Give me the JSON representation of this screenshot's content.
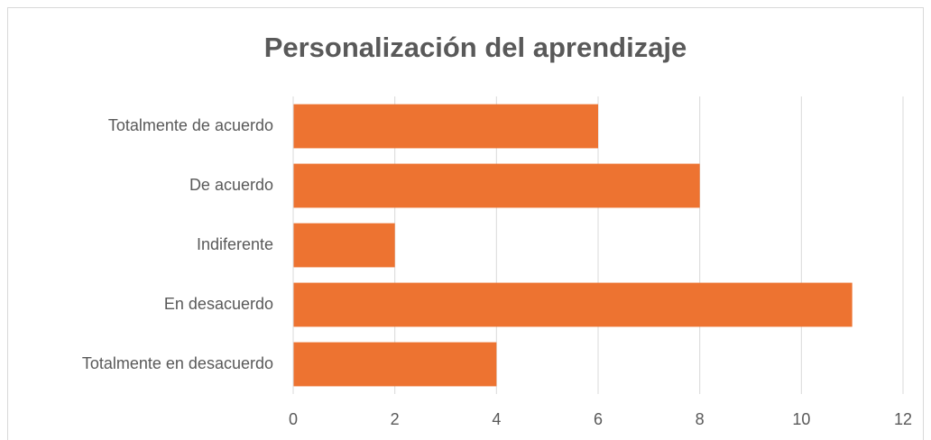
{
  "chart_data": {
    "type": "bar",
    "orientation": "horizontal",
    "title": "Personalización del aprendizaje",
    "categories": [
      "Totalmente de acuerdo",
      "De acuerdo",
      "Indiferente",
      "En desacuerdo",
      "Totalmente en desacuerdo"
    ],
    "values": [
      6,
      8,
      2,
      11,
      4
    ],
    "color": "#ed7331",
    "xlim": [
      0,
      12
    ],
    "xticks": [
      0,
      2,
      4,
      6,
      8,
      10,
      12
    ],
    "grid": true
  }
}
